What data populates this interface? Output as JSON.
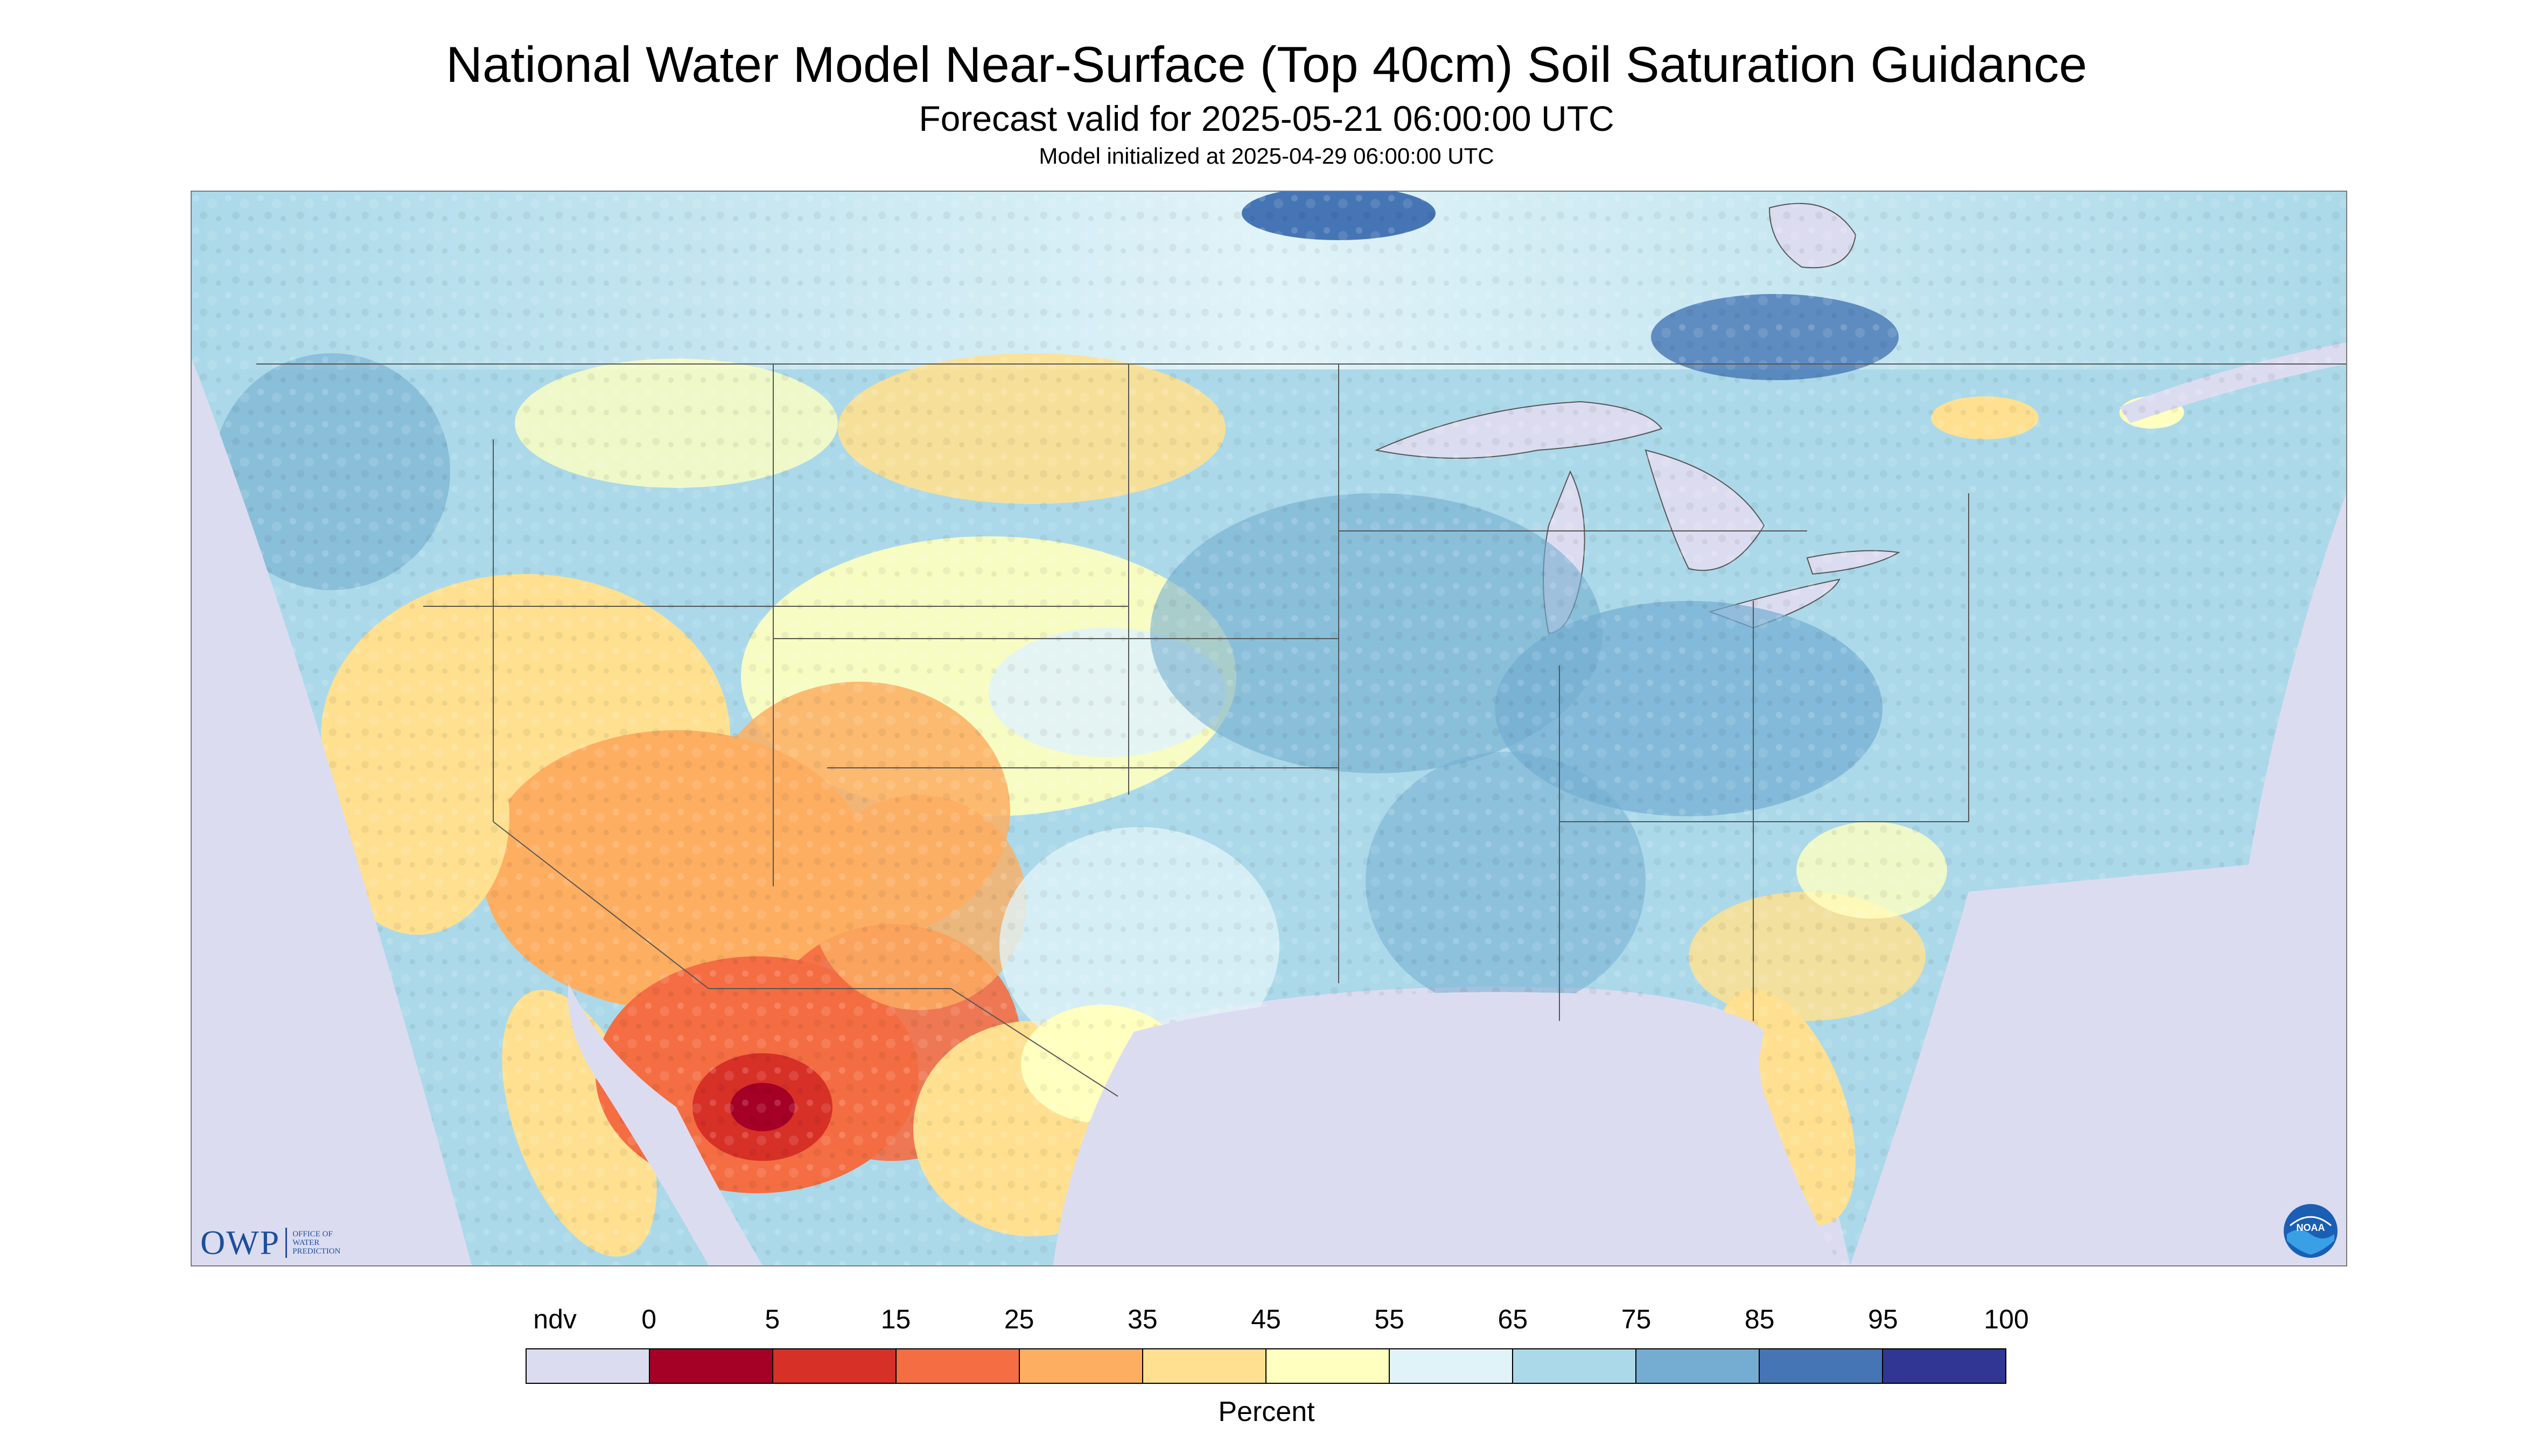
{
  "title": "National Water Model Near-Surface (Top 40cm) Soil Saturation Guidance",
  "subtitle": "Forecast valid for 2025-05-21 06:00:00 UTC",
  "init_line": "Model initialized at 2025-04-29 06:00:00 UTC",
  "logo": {
    "owp_mark": "OWP",
    "owp_line1": "Office of",
    "owp_line2": "Water",
    "owp_line3": "Prediction",
    "noaa_text": "NOAA"
  },
  "legend": {
    "unit": "Percent",
    "tick_labels": [
      "ndv",
      "0",
      "5",
      "15",
      "25",
      "35",
      "45",
      "55",
      "65",
      "75",
      "85",
      "95",
      "100"
    ],
    "colors": [
      "#dcdcf0",
      "#a50026",
      "#d73027",
      "#f46d43",
      "#fdae61",
      "#fee090",
      "#ffffbf",
      "#e0f3f8",
      "#abd9e9",
      "#74add1",
      "#4575b4",
      "#313695"
    ]
  },
  "map": {
    "ndv_color": "#dcdcf0",
    "border_color": "#555555",
    "region_levels": {
      "desert_southwest_core": 5,
      "southwest": 25,
      "southern_plains_west": 35,
      "mexico_north": 35,
      "florida_southeast": 45,
      "northern_plains": 45,
      "great_plains": 55,
      "pacific_northwest": 65,
      "midwest": 65,
      "east": 65,
      "canada": 55,
      "lower_mississippi": 75,
      "ohio_valley": 75
    }
  }
}
